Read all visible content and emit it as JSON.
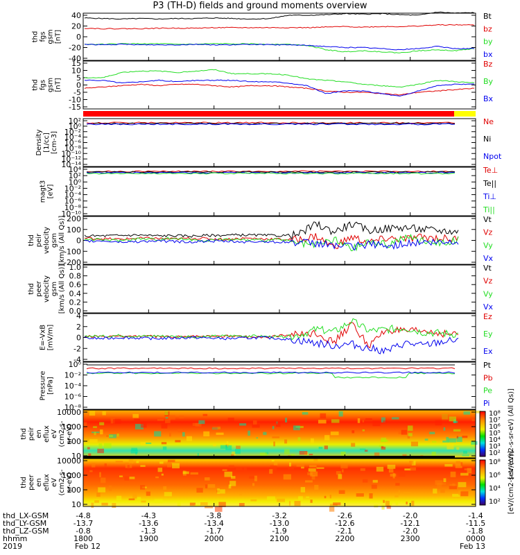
{
  "title": "P3 (TH-D) fields and ground moments overview",
  "colors": {
    "black": "#000000",
    "red": "#e00000",
    "green": "#22dd22",
    "blue": "#0000ee",
    "yellow": "#f0f000"
  },
  "chart_data": [
    {
      "type": "line",
      "ylabel": [
        "thd",
        "fgs",
        "gsm",
        "[nT]"
      ],
      "ylim": [
        -40,
        40
      ],
      "yticks": [
        40,
        20,
        0,
        -20,
        -40
      ],
      "series": [
        {
          "name": "Bt",
          "color": "red_black",
          "values": [
            35,
            34,
            33,
            34,
            33,
            34,
            34,
            35,
            34,
            33,
            34,
            40,
            40,
            41,
            43,
            42,
            43,
            41,
            40,
            46,
            44,
            45
          ]
        },
        {
          "name": "bz",
          "values": [
            16,
            15,
            15,
            15,
            16,
            16,
            16,
            17,
            17,
            17,
            17,
            17,
            17,
            18,
            19,
            18,
            19,
            19,
            20,
            22,
            22,
            22
          ]
        },
        {
          "name": "by",
          "values": [
            -14,
            -14,
            -13,
            -13,
            -13,
            -14,
            -14,
            -13,
            -13,
            -13,
            -14,
            -14,
            -16,
            -24,
            -28,
            -26,
            -28,
            -30,
            -26,
            -24,
            -26,
            -22
          ]
        },
        {
          "name": "bx",
          "values": [
            -14,
            -15,
            -14,
            -15,
            -15,
            -15,
            -14,
            -15,
            -15,
            -14,
            -15,
            -15,
            -16,
            -18,
            -20,
            -20,
            -22,
            -24,
            -22,
            -18,
            -22,
            -22
          ]
        }
      ],
      "legend": [
        "Bt",
        "bz",
        "by",
        "bx"
      ]
    },
    {
      "type": "line",
      "ylabel": [
        "thd",
        "fgs",
        "gsm",
        "[nT]"
      ],
      "ylim": [
        -18,
        15
      ],
      "yticks": [
        15,
        10,
        5,
        0,
        -5,
        -10,
        -15
      ],
      "series": [
        {
          "name": "Bz",
          "values": [
            -4,
            -3,
            -2,
            -1,
            -2,
            -1,
            -1,
            -2,
            -3,
            -2,
            -2,
            -3,
            -4,
            -6,
            -7,
            -7,
            -8,
            -9,
            -7,
            -6,
            -5,
            -4
          ]
        },
        {
          "name": "By",
          "values": [
            4,
            4,
            8,
            9,
            9,
            8,
            9,
            10,
            7,
            7,
            7,
            6,
            3,
            2,
            1,
            -1,
            -2,
            -3,
            -1,
            2,
            1,
            0
          ]
        },
        {
          "name": "Bx",
          "values": [
            2,
            2,
            0,
            1,
            2,
            1,
            2,
            2,
            2,
            1,
            1,
            0,
            -2,
            -8,
            -6,
            -6,
            -8,
            -10,
            -6,
            -2,
            -1,
            -1
          ]
        }
      ],
      "legend": [
        "Bz",
        "By",
        "Bx"
      ]
    },
    {
      "type": "line",
      "ylabel": [
        "Density",
        "[1/cc]",
        "[cm-3]"
      ],
      "scale": "log",
      "yticks": [
        "10²",
        "10⁰",
        "10⁻²",
        "10⁻⁴",
        "10⁻⁶",
        "10⁻⁸",
        "10⁻¹⁰",
        "10⁻¹²",
        "10⁻¹⁴"
      ],
      "legend": [
        "Ne",
        "Ni",
        "Npot"
      ]
    },
    {
      "type": "line",
      "ylabel": [
        "magt3",
        "[eV]"
      ],
      "scale": "log",
      "yticks": [
        "10⁴",
        "10²",
        "10⁰",
        "10⁻²",
        "10⁻⁴",
        "10⁻⁶",
        "10⁻⁸",
        "10⁻¹⁰"
      ],
      "legend": [
        "Te⊥",
        "Te||",
        "Ti⊥",
        "Ti||"
      ]
    },
    {
      "type": "line",
      "ylabel": [
        "thd",
        "peir",
        "velocity",
        "gsm",
        "[km/s (All Qs)]"
      ],
      "ylim": [
        -200,
        200
      ],
      "yticks": [
        200,
        100,
        0,
        -100,
        -200
      ],
      "series": [
        {
          "name": "Vt",
          "values": [
            40,
            42,
            45,
            50,
            42,
            44,
            40,
            46,
            48,
            50,
            46,
            44,
            50,
            150,
            80,
            150,
            90,
            110,
            120,
            100,
            90,
            80
          ]
        },
        {
          "name": "Vz",
          "values": [
            20,
            15,
            10,
            20,
            18,
            12,
            20,
            15,
            10,
            20,
            15,
            10,
            5,
            40,
            -60,
            30,
            -20,
            20,
            10,
            30,
            20,
            10
          ]
        },
        {
          "name": "Vy",
          "values": [
            10,
            5,
            0,
            15,
            10,
            20,
            5,
            0,
            10,
            5,
            0,
            10,
            -30,
            -50,
            10,
            -80,
            -10,
            -40,
            30,
            0,
            -20,
            0
          ]
        },
        {
          "name": "Vx",
          "values": [
            -10,
            -5,
            -15,
            -10,
            -5,
            -10,
            -15,
            -5,
            -10,
            -15,
            -10,
            -15,
            -20,
            -30,
            -40,
            -60,
            -30,
            -60,
            -30,
            -20,
            -25,
            -10
          ]
        }
      ],
      "legend": [
        "Vt",
        "Vz",
        "Vy",
        "Vx"
      ]
    },
    {
      "type": "line",
      "ylabel": [
        "thd",
        "peer",
        "velocity",
        "gsm",
        "[km/s (All Qs)]"
      ],
      "ylim": [
        0.0,
        1.0
      ],
      "yticks": [
        "1.0",
        "0.8",
        "0.6",
        "0.4",
        "0.2",
        "0.0"
      ],
      "legend": [
        "Vt",
        "Vz",
        "Vy",
        "Vx"
      ]
    },
    {
      "type": "line",
      "ylabel": [
        "E=-VxB",
        "[mV/m]"
      ],
      "ylim": [
        -4,
        4
      ],
      "yticks": [
        4,
        2,
        0,
        -2,
        -4
      ],
      "series": [
        {
          "name": "Ez",
          "values": [
            0.2,
            0.1,
            0.2,
            0.3,
            0.2,
            0.1,
            0.2,
            0.2,
            0.3,
            0.2,
            0.1,
            0.3,
            0.5,
            1.0,
            -1.0,
            2.5,
            -1.5,
            1.5,
            1.0,
            1.2,
            0.8,
            0.5
          ]
        },
        {
          "name": "Ey",
          "values": [
            0.3,
            0.2,
            0.4,
            0.2,
            0.3,
            0.2,
            0.1,
            0.2,
            0.3,
            0.3,
            0.2,
            0.1,
            0.4,
            1.5,
            1.0,
            3.0,
            1.2,
            1.5,
            1.8,
            1.0,
            0.8,
            0.6
          ]
        },
        {
          "name": "Ex",
          "values": [
            -0.1,
            -0.2,
            0.0,
            -0.1,
            -0.2,
            -0.1,
            0.0,
            -0.1,
            -0.2,
            -0.1,
            0.0,
            -0.2,
            -0.5,
            -1.0,
            -1.5,
            -1.2,
            -2.0,
            -2.5,
            -1.0,
            -1.5,
            -0.8,
            -0.5
          ]
        }
      ],
      "legend": [
        "Ez",
        "Ey",
        "Ex"
      ]
    },
    {
      "type": "line",
      "ylabel": [
        "Pressure",
        "[nPa]"
      ],
      "scale": "log",
      "yticks": [
        "10⁰",
        "10⁻²",
        "10⁻⁴",
        "10⁻⁶",
        "10⁻⁸"
      ],
      "legend": [
        "Pt",
        "Pb",
        "Pe",
        "Pi"
      ]
    },
    {
      "type": "heatmap",
      "ylabel": [
        "thd",
        "peir",
        "en",
        "eflux",
        "eV",
        "(cm2-s-",
        "sr-eV)"
      ],
      "yticks": [
        "10000",
        "1000",
        "100",
        "10"
      ],
      "colorbar_ticks": [
        "10⁸",
        "10⁷",
        "10⁶",
        "10⁵",
        "10⁴",
        "10³",
        "10²"
      ],
      "colorbar_label": "[eV/(cm2-s-sr-eV) (All Qs)]"
    },
    {
      "type": "heatmap",
      "ylabel": [
        "thd",
        "peer",
        "en",
        "eflux",
        "eV",
        "(cm2-s-",
        "sr-eV)"
      ],
      "yticks": [
        "10000",
        "1000",
        "100",
        "10"
      ],
      "colorbar_ticks": [
        "10⁸",
        "10⁶",
        "10⁴",
        "10²"
      ],
      "colorbar_label": "[eV/(cm2-s-sr-eV)]"
    }
  ],
  "xaxis": {
    "row_labels": [
      "thd_LX-GSM",
      "thd_LY-GSM",
      "thd_LZ-GSM",
      "hhmm",
      "2019"
    ],
    "columns": [
      [
        "-4.8",
        "-13.7",
        "-0.8",
        "1800",
        "Feb 12"
      ],
      [
        "-4.3",
        "-13.6",
        "-1.3",
        "1900",
        ""
      ],
      [
        "-3.8",
        "-13.4",
        "-1.7",
        "2000",
        ""
      ],
      [
        "-3.2",
        "-13.0",
        "-1.9",
        "2100",
        ""
      ],
      [
        "-2.6",
        "-12.6",
        "-2.1",
        "2200",
        ""
      ],
      [
        "-2.0",
        "-12.1",
        "-2.0",
        "2300",
        ""
      ],
      [
        "-1.4",
        "-11.5",
        "-1.8",
        "0000",
        "Feb 13"
      ]
    ]
  }
}
